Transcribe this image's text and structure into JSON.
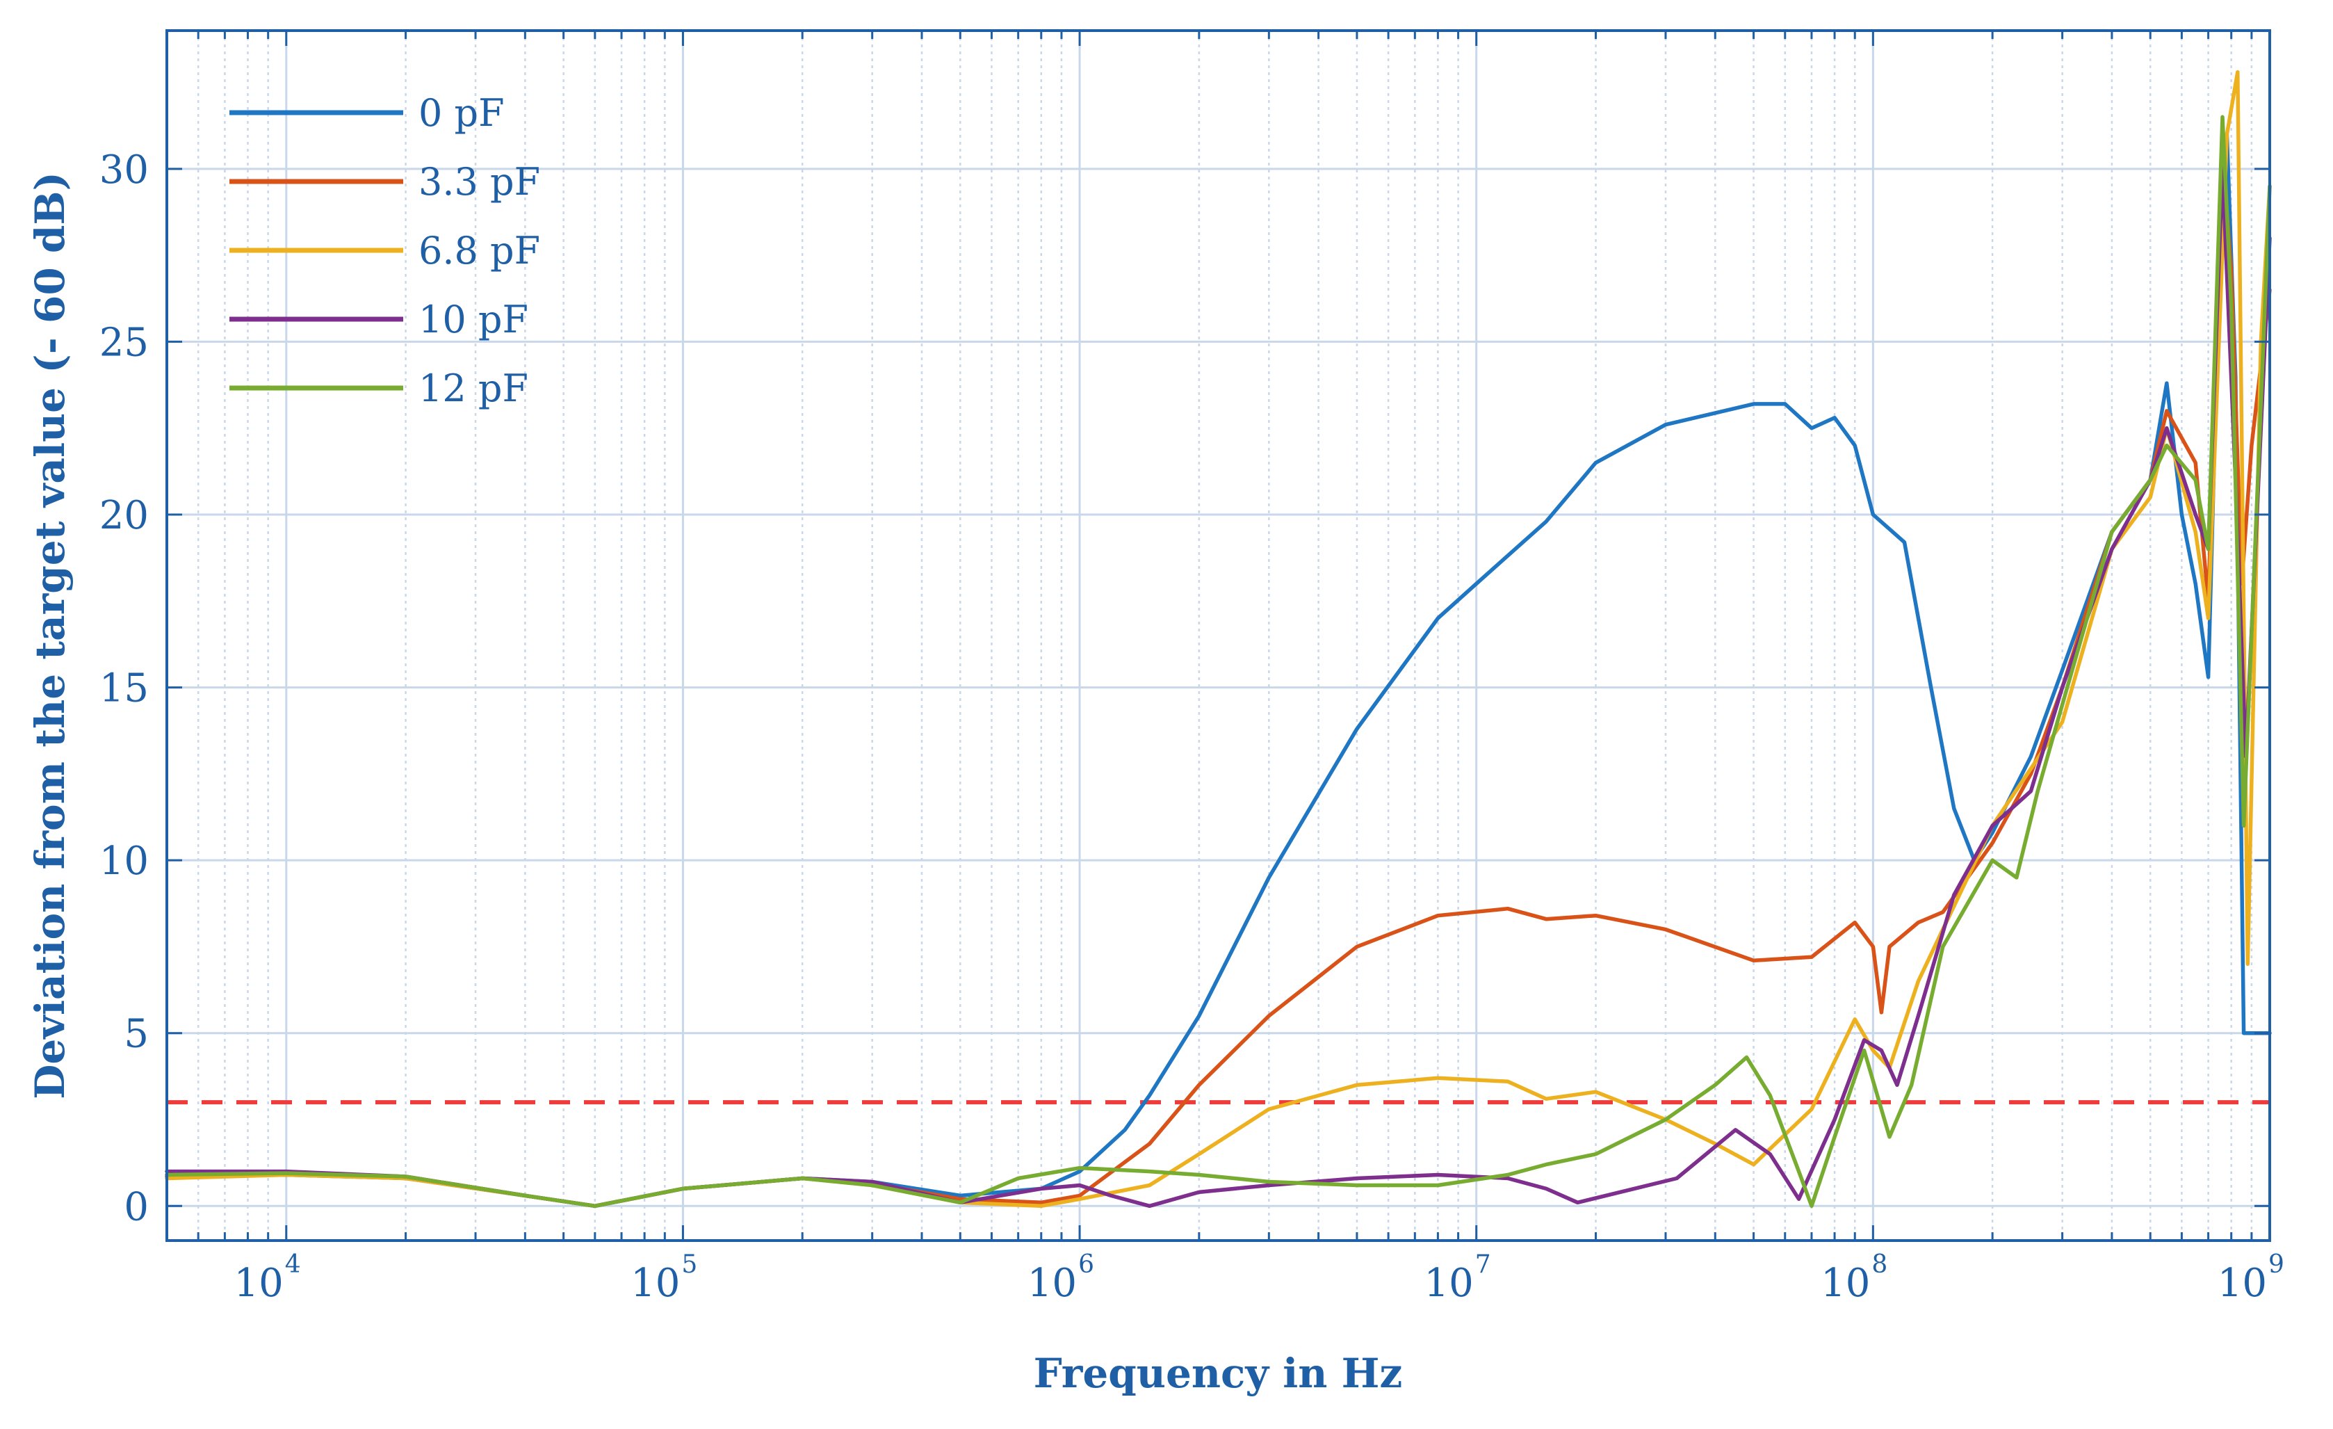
{
  "chart_data": {
    "type": "line",
    "xscale": "log",
    "xlabel": "Frequency in Hz",
    "ylabel": "Deviation from the target value (- 60 dB)",
    "xlim": [
      5000,
      1000000000
    ],
    "ylim": [
      -1,
      34
    ],
    "x_ticks": [
      {
        "base": "10",
        "exp": "4",
        "value": 10000
      },
      {
        "base": "10",
        "exp": "5",
        "value": 100000
      },
      {
        "base": "10",
        "exp": "6",
        "value": 1000000
      },
      {
        "base": "10",
        "exp": "7",
        "value": 10000000
      },
      {
        "base": "10",
        "exp": "8",
        "value": 100000000
      },
      {
        "base": "10",
        "exp": "9",
        "value": 1000000000
      }
    ],
    "y_ticks": [
      {
        "label": "0",
        "value": 0
      },
      {
        "label": "5",
        "value": 5
      },
      {
        "label": "10",
        "value": 10
      },
      {
        "label": "15",
        "value": 15
      },
      {
        "label": "20",
        "value": 20
      },
      {
        "label": "25",
        "value": 25
      },
      {
        "label": "30",
        "value": 30
      }
    ],
    "reference_line": {
      "y": 3,
      "color": "#ee3b3b",
      "style": "dashed"
    },
    "legend": {
      "placement": "top-left"
    },
    "grid": true,
    "series": [
      {
        "name": "0 pF",
        "color": "#1f77c4",
        "points": [
          [
            5000,
            0.85
          ],
          [
            10000,
            0.9
          ],
          [
            20000,
            0.8
          ],
          [
            40000,
            0.3
          ],
          [
            60000,
            0.0
          ],
          [
            100000,
            0.5
          ],
          [
            200000,
            0.8
          ],
          [
            300000,
            0.7
          ],
          [
            500000,
            0.3
          ],
          [
            800000,
            0.5
          ],
          [
            1000000,
            1.0
          ],
          [
            1300000,
            2.2
          ],
          [
            1500000,
            3.2
          ],
          [
            2000000,
            5.5
          ],
          [
            3000000,
            9.5
          ],
          [
            5000000,
            13.8
          ],
          [
            8000000,
            17.0
          ],
          [
            10000000,
            18.0
          ],
          [
            15000000,
            19.8
          ],
          [
            20000000,
            21.5
          ],
          [
            30000000,
            22.6
          ],
          [
            50000000,
            23.2
          ],
          [
            60000000,
            23.2
          ],
          [
            70000000,
            22.5
          ],
          [
            80000000,
            22.8
          ],
          [
            90000000,
            22.0
          ],
          [
            100000000,
            20.0
          ],
          [
            120000000,
            19.2
          ],
          [
            140000000,
            15.0
          ],
          [
            160000000,
            11.5
          ],
          [
            180000000,
            10.0
          ],
          [
            200000000,
            10.8
          ],
          [
            250000000,
            13.0
          ],
          [
            300000000,
            15.5
          ],
          [
            400000000,
            19.5
          ],
          [
            500000000,
            21.0
          ],
          [
            550000000,
            23.8
          ],
          [
            600000000,
            20.0
          ],
          [
            650000000,
            18.0
          ],
          [
            700000000,
            15.3
          ],
          [
            750000000,
            28.0
          ],
          [
            780000000,
            31.0
          ],
          [
            820000000,
            24.0
          ],
          [
            860000000,
            5.0
          ],
          [
            950000000,
            5.0
          ],
          [
            1000000000,
            5.0
          ]
        ]
      },
      {
        "name": "3.3 pF",
        "color": "#d95319",
        "points": [
          [
            5000,
            0.9
          ],
          [
            10000,
            0.95
          ],
          [
            20000,
            0.85
          ],
          [
            40000,
            0.3
          ],
          [
            60000,
            0.0
          ],
          [
            100000,
            0.5
          ],
          [
            200000,
            0.8
          ],
          [
            300000,
            0.65
          ],
          [
            500000,
            0.2
          ],
          [
            800000,
            0.1
          ],
          [
            1000000,
            0.3
          ],
          [
            1500000,
            1.8
          ],
          [
            2000000,
            3.5
          ],
          [
            3000000,
            5.5
          ],
          [
            5000000,
            7.5
          ],
          [
            8000000,
            8.4
          ],
          [
            12000000,
            8.6
          ],
          [
            15000000,
            8.3
          ],
          [
            20000000,
            8.4
          ],
          [
            30000000,
            8.0
          ],
          [
            50000000,
            7.1
          ],
          [
            70000000,
            7.2
          ],
          [
            90000000,
            8.2
          ],
          [
            100000000,
            7.5
          ],
          [
            105000000,
            5.6
          ],
          [
            110000000,
            7.5
          ],
          [
            130000000,
            8.2
          ],
          [
            150000000,
            8.5
          ],
          [
            200000000,
            10.5
          ],
          [
            250000000,
            12.5
          ],
          [
            300000000,
            15.0
          ],
          [
            400000000,
            19.5
          ],
          [
            500000000,
            21.0
          ],
          [
            550000000,
            23.0
          ],
          [
            650000000,
            21.5
          ],
          [
            700000000,
            17.5
          ],
          [
            760000000,
            30.5
          ],
          [
            800000000,
            27.0
          ],
          [
            850000000,
            18.0
          ],
          [
            900000000,
            22.0
          ],
          [
            1000000000,
            26.5
          ]
        ]
      },
      {
        "name": "6.8 pF",
        "color": "#edb120",
        "points": [
          [
            5000,
            0.8
          ],
          [
            10000,
            0.9
          ],
          [
            20000,
            0.8
          ],
          [
            40000,
            0.3
          ],
          [
            60000,
            0.0
          ],
          [
            100000,
            0.5
          ],
          [
            200000,
            0.8
          ],
          [
            300000,
            0.6
          ],
          [
            500000,
            0.1
          ],
          [
            800000,
            0.0
          ],
          [
            1000000,
            0.2
          ],
          [
            1500000,
            0.6
          ],
          [
            2000000,
            1.5
          ],
          [
            3000000,
            2.8
          ],
          [
            5000000,
            3.5
          ],
          [
            8000000,
            3.7
          ],
          [
            12000000,
            3.6
          ],
          [
            15000000,
            3.1
          ],
          [
            20000000,
            3.3
          ],
          [
            30000000,
            2.5
          ],
          [
            40000000,
            1.8
          ],
          [
            50000000,
            1.2
          ],
          [
            70000000,
            2.8
          ],
          [
            90000000,
            5.4
          ],
          [
            100000000,
            4.5
          ],
          [
            110000000,
            4.0
          ],
          [
            130000000,
            6.5
          ],
          [
            150000000,
            8.0
          ],
          [
            200000000,
            11.0
          ],
          [
            300000000,
            14.0
          ],
          [
            400000000,
            19.0
          ],
          [
            500000000,
            20.5
          ],
          [
            550000000,
            22.5
          ],
          [
            650000000,
            19.5
          ],
          [
            700000000,
            17.0
          ],
          [
            780000000,
            31.0
          ],
          [
            830000000,
            32.8
          ],
          [
            880000000,
            7.0
          ],
          [
            950000000,
            25.0
          ],
          [
            1000000000,
            29.5
          ]
        ]
      },
      {
        "name": "10 pF",
        "color": "#7e2f8e",
        "points": [
          [
            5000,
            1.0
          ],
          [
            10000,
            1.0
          ],
          [
            20000,
            0.85
          ],
          [
            40000,
            0.3
          ],
          [
            60000,
            0.0
          ],
          [
            100000,
            0.5
          ],
          [
            200000,
            0.8
          ],
          [
            300000,
            0.7
          ],
          [
            500000,
            0.1
          ],
          [
            800000,
            0.5
          ],
          [
            1000000,
            0.6
          ],
          [
            1200000,
            0.3
          ],
          [
            1500000,
            0.0
          ],
          [
            2000000,
            0.4
          ],
          [
            3000000,
            0.6
          ],
          [
            5000000,
            0.8
          ],
          [
            8000000,
            0.9
          ],
          [
            12000000,
            0.8
          ],
          [
            15000000,
            0.5
          ],
          [
            18000000,
            0.1
          ],
          [
            25000000,
            0.5
          ],
          [
            32000000,
            0.8
          ],
          [
            45000000,
            2.2
          ],
          [
            55000000,
            1.5
          ],
          [
            65000000,
            0.2
          ],
          [
            80000000,
            2.5
          ],
          [
            95000000,
            4.8
          ],
          [
            105000000,
            4.5
          ],
          [
            115000000,
            3.5
          ],
          [
            130000000,
            5.5
          ],
          [
            160000000,
            9.0
          ],
          [
            200000000,
            11.0
          ],
          [
            250000000,
            12.0
          ],
          [
            300000000,
            15.0
          ],
          [
            400000000,
            19.0
          ],
          [
            500000000,
            21.0
          ],
          [
            550000000,
            22.5
          ],
          [
            650000000,
            20.0
          ],
          [
            700000000,
            19.0
          ],
          [
            760000000,
            30.0
          ],
          [
            820000000,
            21.0
          ],
          [
            870000000,
            13.0
          ],
          [
            1000000000,
            28.0
          ]
        ]
      },
      {
        "name": "12 pF",
        "color": "#77ac30",
        "points": [
          [
            5000,
            0.9
          ],
          [
            10000,
            0.95
          ],
          [
            20000,
            0.85
          ],
          [
            40000,
            0.3
          ],
          [
            60000,
            0.0
          ],
          [
            100000,
            0.5
          ],
          [
            200000,
            0.8
          ],
          [
            300000,
            0.6
          ],
          [
            500000,
            0.1
          ],
          [
            700000,
            0.8
          ],
          [
            1000000,
            1.1
          ],
          [
            1500000,
            1.0
          ],
          [
            2000000,
            0.9
          ],
          [
            3000000,
            0.7
          ],
          [
            5000000,
            0.6
          ],
          [
            8000000,
            0.6
          ],
          [
            12000000,
            0.9
          ],
          [
            15000000,
            1.2
          ],
          [
            20000000,
            1.5
          ],
          [
            30000000,
            2.5
          ],
          [
            40000000,
            3.5
          ],
          [
            48000000,
            4.3
          ],
          [
            55000000,
            3.2
          ],
          [
            65000000,
            1.0
          ],
          [
            70000000,
            0.0
          ],
          [
            80000000,
            2.0
          ],
          [
            95000000,
            4.5
          ],
          [
            110000000,
            2.0
          ],
          [
            125000000,
            3.5
          ],
          [
            150000000,
            7.5
          ],
          [
            200000000,
            10.0
          ],
          [
            230000000,
            9.5
          ],
          [
            260000000,
            12.0
          ],
          [
            300000000,
            14.5
          ],
          [
            400000000,
            19.5
          ],
          [
            500000000,
            21.0
          ],
          [
            550000000,
            22.0
          ],
          [
            650000000,
            21.0
          ],
          [
            700000000,
            19.0
          ],
          [
            760000000,
            31.5
          ],
          [
            800000000,
            26.0
          ],
          [
            860000000,
            11.0
          ],
          [
            1000000000,
            29.5
          ]
        ]
      }
    ]
  }
}
